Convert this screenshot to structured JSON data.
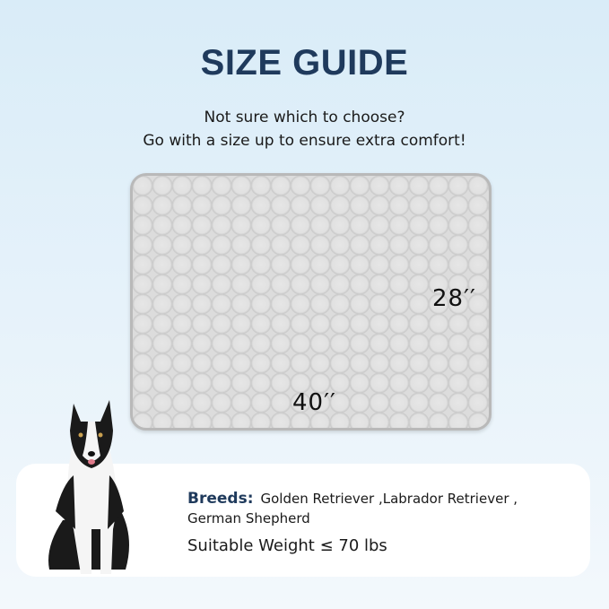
{
  "title": "SIZE GUIDE",
  "subtitle": {
    "line1": "Not sure which to choose?",
    "line2": "Go with a size up to ensure extra comfort!"
  },
  "mat": {
    "width_label": "40′′",
    "height_label": "28′′"
  },
  "info": {
    "breeds_label": "Breeds:",
    "breeds_value": "Golden Retriever ,Labrador Retriever , German Shepherd",
    "weight": "Suitable Weight ≤ 70 lbs"
  },
  "colors": {
    "title": "#1f3a5c",
    "mat": "#dcdcdc"
  }
}
